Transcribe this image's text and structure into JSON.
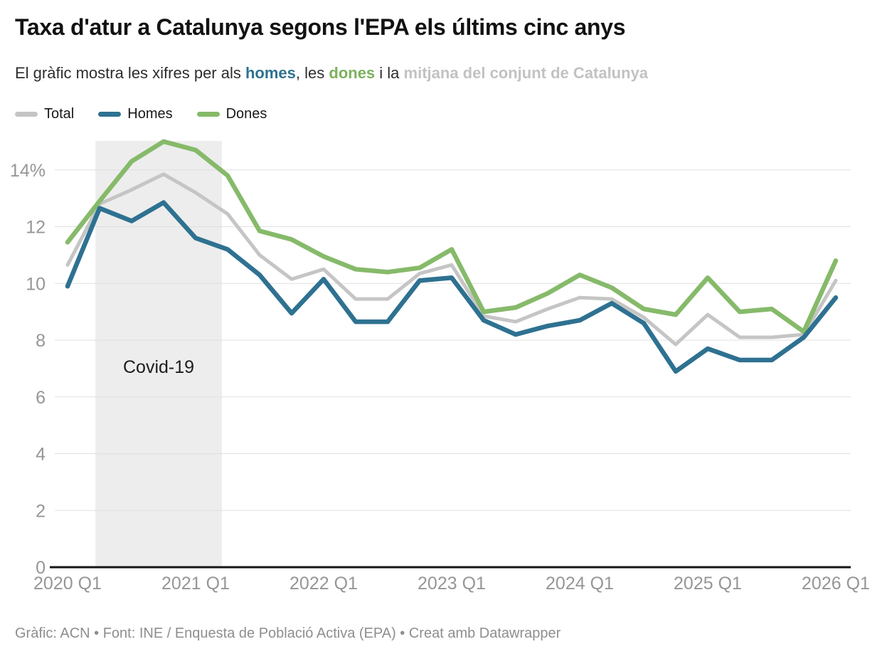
{
  "header": {
    "title": "Taxa d'atur a Catalunya segons l'EPA els últims cinc anys",
    "subtitle_parts": [
      {
        "text": "El gràfic mostra les xifres per als ",
        "color": "#2d2d2d",
        "bold": false
      },
      {
        "text": "homes",
        "color": "#2e7191",
        "bold": true
      },
      {
        "text": ", les ",
        "color": "#2d2d2d",
        "bold": false
      },
      {
        "text": "dones",
        "color": "#7db15d",
        "bold": true
      },
      {
        "text": " i la ",
        "color": "#2d2d2d",
        "bold": false
      },
      {
        "text": "mitjana del conjunt de Catalunya",
        "color": "#c2c2c2",
        "bold": true
      }
    ]
  },
  "chart_data": {
    "type": "line",
    "title": "Taxa d'atur a Catalunya segons l'EPA els últims cinc anys",
    "unit": "%",
    "categories": [
      "2020 Q1",
      "2020 Q2",
      "2020 Q3",
      "2020 Q4",
      "2021 Q1",
      "2021 Q2",
      "2021 Q3",
      "2021 Q4",
      "2022 Q1",
      "2022 Q2",
      "2022 Q3",
      "2022 Q4",
      "2023 Q1",
      "2023 Q2",
      "2023 Q3",
      "2023 Q4",
      "2024 Q1",
      "2024 Q2",
      "2024 Q3",
      "2024 Q4",
      "2025 Q1",
      "2025 Q2",
      "2025 Q3",
      "2025 Q4",
      "2026 Q1"
    ],
    "series": [
      {
        "name": "Total",
        "color": "#c5c5c5",
        "values": [
          10.65,
          12.8,
          13.3,
          13.85,
          13.2,
          12.45,
          11.0,
          10.15,
          10.5,
          9.45,
          9.45,
          10.35,
          10.65,
          8.85,
          8.65,
          9.1,
          9.5,
          9.45,
          8.8,
          7.85,
          8.9,
          8.1,
          8.1,
          8.2,
          10.1
        ]
      },
      {
        "name": "Homes",
        "color": "#2e7191",
        "values": [
          9.9,
          12.65,
          12.2,
          12.85,
          11.6,
          11.2,
          10.3,
          8.95,
          10.15,
          8.65,
          8.65,
          10.1,
          10.2,
          8.7,
          8.2,
          8.5,
          8.7,
          9.3,
          8.6,
          6.9,
          7.7,
          7.3,
          7.3,
          8.1,
          9.5
        ]
      },
      {
        "name": "Dones",
        "color": "#86ba6a",
        "values": [
          11.45,
          12.9,
          14.3,
          15.0,
          14.7,
          13.8,
          11.85,
          11.55,
          10.95,
          10.5,
          10.4,
          10.55,
          11.2,
          9.0,
          9.15,
          9.65,
          10.3,
          9.85,
          9.1,
          8.9,
          10.2,
          9.0,
          9.1,
          8.3,
          10.8
        ]
      }
    ],
    "draw_order": [
      "Total",
      "Dones",
      "Homes"
    ],
    "y_ticks": [
      {
        "value": 14,
        "label": "14%"
      },
      {
        "value": 12,
        "label": "12"
      },
      {
        "value": 10,
        "label": "10"
      },
      {
        "value": 8,
        "label": "8"
      },
      {
        "value": 6,
        "label": "6"
      },
      {
        "value": 4,
        "label": "4"
      },
      {
        "value": 2,
        "label": "2"
      },
      {
        "value": 0,
        "label": "0"
      }
    ],
    "x_ticks": [
      {
        "index": 0,
        "label": "2020 Q1"
      },
      {
        "index": 4,
        "label": "2021 Q1"
      },
      {
        "index": 8,
        "label": "2022 Q1"
      },
      {
        "index": 12,
        "label": "2023 Q1"
      },
      {
        "index": 16,
        "label": "2024 Q1"
      },
      {
        "index": 20,
        "label": "2025 Q1"
      },
      {
        "index": 24,
        "label": "2026 Q1"
      }
    ],
    "ylim": [
      0,
      15.1
    ],
    "grid": "horizontal",
    "legend_position": "top-left",
    "annotation": {
      "label": "Covid-19",
      "from_index": 0.87,
      "to_index": 4.82,
      "label_y_value": 6.85,
      "band_color": "#ededed",
      "label_color": "#1c1c1c"
    }
  },
  "footer": {
    "credit": "Gràfic: ACN • Font: INE / Enquesta de Població Activa (EPA) • Creat amb Datawrapper"
  }
}
